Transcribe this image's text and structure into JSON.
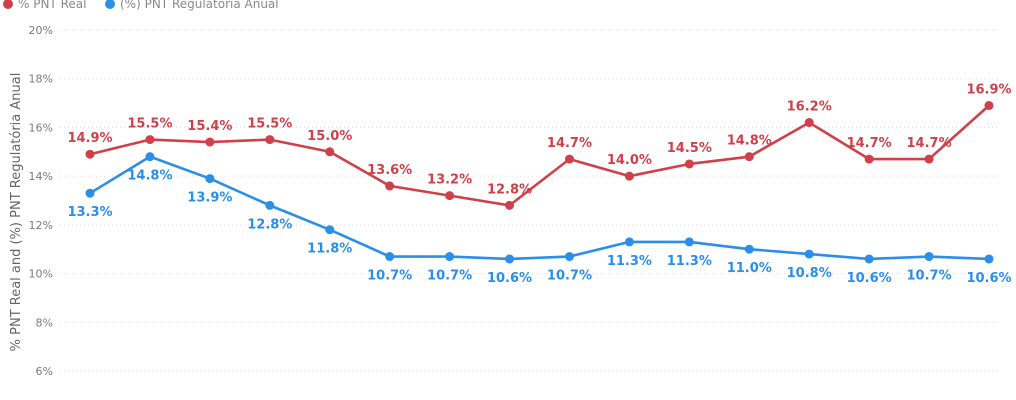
{
  "chart_data": {
    "type": "line",
    "ylabel": "% PNT Real and (%) PNT Regulatória Anual",
    "ylim": [
      6,
      20
    ],
    "yticks": [
      {
        "value": 6,
        "label": "6%"
      },
      {
        "value": 8,
        "label": "8%"
      },
      {
        "value": 10,
        "label": "10%"
      },
      {
        "value": 12,
        "label": "12%"
      },
      {
        "value": 14,
        "label": "14%"
      },
      {
        "value": 16,
        "label": "16%"
      },
      {
        "value": 18,
        "label": "18%"
      },
      {
        "value": 20,
        "label": "20%"
      }
    ],
    "grid": true,
    "legend_position": "top-left",
    "series": [
      {
        "name": "% PNT Real",
        "color": "#d0404a",
        "label_position": "above",
        "values": [
          14.9,
          15.5,
          15.4,
          15.5,
          15.0,
          13.6,
          13.2,
          12.8,
          14.7,
          14.0,
          14.5,
          14.8,
          16.2,
          14.7,
          14.7,
          16.9
        ],
        "labels": [
          "14.9%",
          "15.5%",
          "15.4%",
          "15.5%",
          "15.0%",
          "13.6%",
          "13.2%",
          "12.8%",
          "14.7%",
          "14.0%",
          "14.5%",
          "14.8%",
          "16.2%",
          "14.7%",
          "14.7%",
          "16.9%"
        ]
      },
      {
        "name": "(%) PNT Regulatória Anual",
        "color": "#2b8ee8",
        "label_position": "below",
        "values": [
          13.3,
          14.8,
          13.9,
          12.8,
          11.8,
          10.7,
          10.7,
          10.6,
          10.7,
          11.3,
          11.3,
          11.0,
          10.8,
          10.6,
          10.7,
          10.6
        ],
        "labels": [
          "13.3%",
          "14.8%",
          "13.9%",
          "12.8%",
          "11.8%",
          "10.7%",
          "10.7%",
          "10.6%",
          "10.7%",
          "11.3%",
          "11.3%",
          "11.0%",
          "10.8%",
          "10.6%",
          "10.7%",
          "10.6%"
        ]
      }
    ]
  }
}
